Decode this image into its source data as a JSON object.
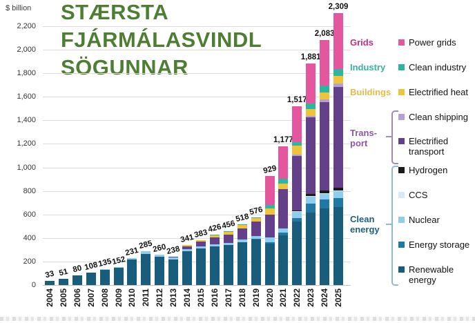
{
  "overlay_title": {
    "lines": [
      "STÆRSTA",
      "FJÁRMÁLASVINDL",
      "SÖGUNNAR"
    ],
    "color": "#4e7e33"
  },
  "chart_data": {
    "type": "bar",
    "stacked": true,
    "unit_label": "$ billion",
    "ylim": [
      0,
      2200
    ],
    "ytick_step": 200,
    "grid": true,
    "legend_position": "right",
    "categories": [
      "2004",
      "2005",
      "2006",
      "2007",
      "2008",
      "2009",
      "2010",
      "2011",
      "2012",
      "2013",
      "2014",
      "2015",
      "2016",
      "2017",
      "2018",
      "2019",
      "2020",
      "2021",
      "2022",
      "2023",
      "2024",
      "2025"
    ],
    "totals": [
      33,
      51,
      80,
      108,
      135,
      152,
      231,
      285,
      260,
      238,
      341,
      383,
      426,
      456,
      518,
      576,
      929,
      1177,
      1517,
      1881,
      2083,
      2309
    ],
    "series": [
      {
        "name": "Renewable energy",
        "color": "#185e7c",
        "values": [
          33,
          51,
          80,
          105,
          131,
          147,
          215,
          263,
          240,
          215,
          287,
          310,
          328,
          338,
          362,
          384,
          350,
          425,
          538,
          614,
          650,
          660
        ]
      },
      {
        "name": "Energy storage",
        "color": "#1f79a4",
        "values": [
          0,
          0,
          0,
          0,
          0,
          0,
          0,
          0,
          0,
          0,
          0,
          0,
          0,
          0,
          0,
          8,
          12,
          18,
          28,
          77,
          75,
          80
        ]
      },
      {
        "name": "Nuclear",
        "color": "#8fcdee",
        "values": [
          0,
          0,
          0,
          3,
          4,
          5,
          16,
          22,
          20,
          18,
          18,
          18,
          20,
          22,
          24,
          25,
          45,
          40,
          55,
          60,
          50,
          55
        ]
      },
      {
        "name": "CCS",
        "color": "#d5eaf6",
        "values": [
          0,
          0,
          0,
          0,
          0,
          0,
          0,
          0,
          0,
          0,
          0,
          0,
          0,
          0,
          0,
          0,
          0,
          0,
          5,
          8,
          6,
          6
        ]
      },
      {
        "name": "Hydrogen",
        "color": "#1a1a1a",
        "values": [
          0,
          0,
          0,
          0,
          0,
          0,
          0,
          0,
          0,
          0,
          0,
          0,
          0,
          0,
          0,
          0,
          0,
          0,
          6,
          18,
          20,
          25
        ]
      },
      {
        "name": "Electrified transport",
        "color": "#634089",
        "values": [
          0,
          0,
          0,
          0,
          0,
          0,
          0,
          0,
          0,
          5,
          26,
          40,
          57,
          70,
          96,
          121,
          190,
          330,
          466,
          650,
          755,
          860
        ]
      },
      {
        "name": "Clean shipping",
        "color": "#b3a0d6",
        "values": [
          0,
          0,
          0,
          0,
          0,
          0,
          0,
          0,
          0,
          0,
          0,
          0,
          0,
          0,
          0,
          0,
          0,
          0,
          10,
          12,
          20,
          25
        ]
      },
      {
        "name": "Electrified heat",
        "color": "#efc438",
        "values": [
          0,
          0,
          0,
          0,
          0,
          0,
          0,
          0,
          0,
          0,
          10,
          15,
          18,
          20,
          26,
          28,
          55,
          52,
          75,
          57,
          62,
          65
        ]
      },
      {
        "name": "Clean industry",
        "color": "#2eb5a0",
        "values": [
          0,
          0,
          0,
          0,
          0,
          0,
          0,
          0,
          0,
          0,
          0,
          0,
          3,
          6,
          10,
          10,
          28,
          38,
          30,
          45,
          55,
          58
        ]
      },
      {
        "name": "Power grids",
        "color": "#e4569e",
        "values": [
          0,
          0,
          0,
          0,
          0,
          0,
          0,
          0,
          0,
          0,
          0,
          0,
          0,
          0,
          0,
          0,
          249,
          274,
          304,
          340,
          390,
          475
        ]
      }
    ]
  },
  "legend": {
    "groups": [
      {
        "label": "Grids",
        "color": "#c52f80"
      },
      {
        "label": "Industry",
        "color": "#33b2a0"
      },
      {
        "label": "Buildings",
        "color": "#e5bb4a"
      },
      {
        "label": "Trans-port",
        "color": "#8a56a8"
      },
      {
        "label": "Clean energy",
        "color": "#1d5f7e"
      }
    ],
    "items": [
      {
        "label": "Power grids",
        "color": "#e4569e"
      },
      {
        "label": "Clean industry",
        "color": "#2eb5a0"
      },
      {
        "label": "Electrified heat",
        "color": "#efc438"
      },
      {
        "label": "Clean shipping",
        "color": "#b3a0d6"
      },
      {
        "label": "Electrified transport",
        "color": "#634089"
      },
      {
        "label": "Hydrogen",
        "color": "#1a1a1a"
      },
      {
        "label": "CCS",
        "color": "#d5eaf6"
      },
      {
        "label": "Nuclear",
        "color": "#8fcdee"
      },
      {
        "label": "Energy storage",
        "color": "#1f79a4"
      },
      {
        "label": "Renewable energy",
        "color": "#175d7b"
      }
    ],
    "bracket_colors": {
      "transport": "#9f8abe",
      "clean_energy": "#8fb9ce"
    }
  }
}
